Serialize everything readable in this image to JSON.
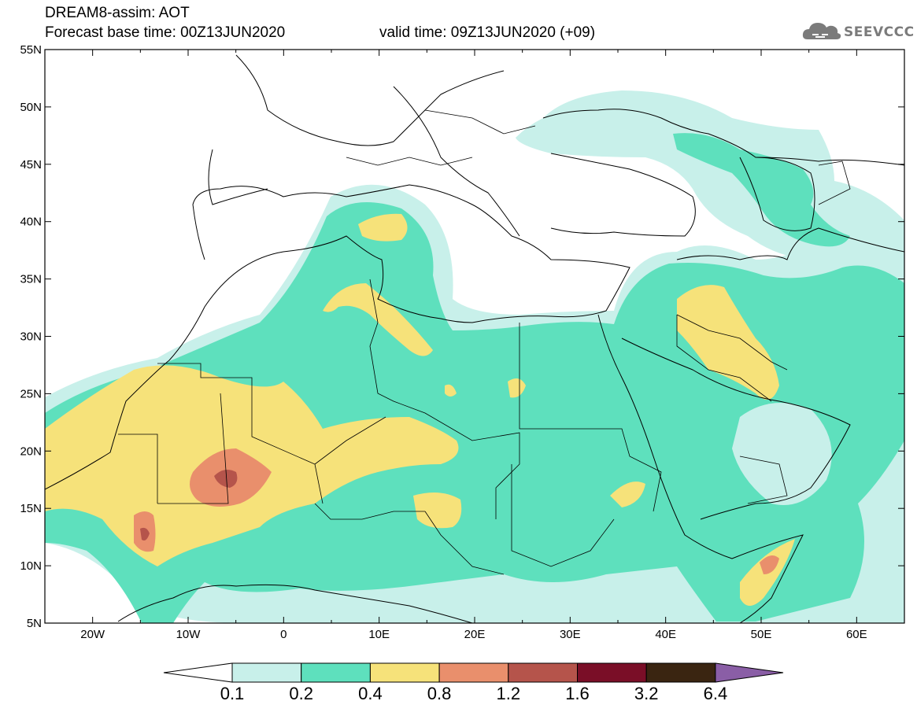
{
  "header": {
    "title": "DREAM8-assim: AOT",
    "base_time": "Forecast base time: 00Z13JUN2020",
    "valid_time": "valid time: 09Z13JUN2020 (+09)"
  },
  "logo": {
    "text": "SEEVCCC",
    "icon": "cloud-icon"
  },
  "map": {
    "lon_range": [
      -25,
      65
    ],
    "lat_range": [
      5,
      55
    ],
    "lat_labels": [
      "55N",
      "50N",
      "45N",
      "40N",
      "35N",
      "30N",
      "25N",
      "20N",
      "15N",
      "10N",
      "5N"
    ],
    "lon_labels": [
      "20W",
      "10W",
      "0",
      "10E",
      "20E",
      "30E",
      "40E",
      "50E",
      "60E"
    ]
  },
  "colorbar": {
    "levels": [
      "0.1",
      "0.2",
      "0.4",
      "0.8",
      "1.2",
      "1.6",
      "3.2",
      "6.4"
    ],
    "colors": [
      "#c8f0ea",
      "#5ee0bd",
      "#f6e27a",
      "#e98f6c",
      "#b5544b",
      "#7a0e27",
      "#3a2511",
      "#8a5ea6"
    ]
  },
  "colors": {
    "c01": "#c8f0ea",
    "c02": "#5ee0bd",
    "c04": "#f6e27a",
    "c08": "#e98f6c",
    "c12": "#b5544b"
  }
}
